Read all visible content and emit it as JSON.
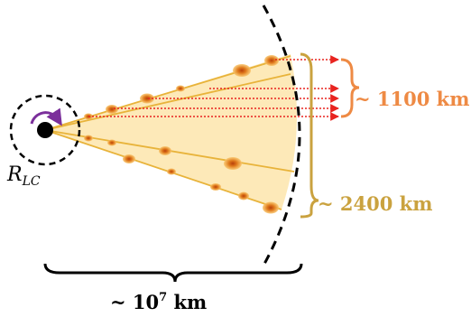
{
  "labels": {
    "rlc_main": "R",
    "rlc_sub": "LC",
    "narrow_width": "~ 1100 km",
    "wide_width": "~ 2400 km",
    "distance_prefix": "~ 10",
    "distance_exp": "7",
    "distance_unit": " km"
  },
  "colors": {
    "fan_fill": "#fde9b8",
    "fan_edge": "#e8b33a",
    "blob_core": "#b8400a",
    "blob_glow": "#f6b24a",
    "rays": "#e8231f",
    "narrow_brace": "#ee8a44",
    "wide_brace": "#caa23f",
    "black": "#000000",
    "rotation_arrow": "#7b2f9b"
  },
  "icons": {
    "neutron_star": "filled-circle",
    "light_cylinder": "dashed-circle",
    "rotation": "curved-arrow-icon",
    "emission_front": "dashed-arc"
  }
}
